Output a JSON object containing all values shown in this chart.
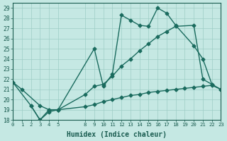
{
  "lines": [
    {
      "x": [
        0,
        1,
        3,
        4,
        5,
        9,
        10,
        11,
        12,
        13,
        14,
        15,
        16,
        17,
        18,
        20,
        21,
        22
      ],
      "y": [
        21.7,
        21.0,
        19.4,
        19.0,
        19.0,
        25.0,
        21.3,
        22.5,
        28.3,
        27.8,
        27.3,
        27.2,
        29.0,
        28.5,
        27.3,
        25.3,
        24.0,
        21.5
      ],
      "color": "#1a6b5e",
      "marker": "D",
      "markersize": 2.5,
      "linewidth": 1.0
    },
    {
      "x": [
        0,
        2,
        3,
        4,
        5,
        8,
        9,
        10,
        11,
        12,
        13,
        14,
        15,
        16,
        17,
        18,
        20,
        21,
        22,
        23
      ],
      "y": [
        21.7,
        19.4,
        18.0,
        19.0,
        19.0,
        20.5,
        21.3,
        21.5,
        22.3,
        23.3,
        24.0,
        24.8,
        25.5,
        26.2,
        26.7,
        27.2,
        27.3,
        22.0,
        21.5,
        21.0
      ],
      "color": "#1a6b5e",
      "marker": "D",
      "markersize": 2.5,
      "linewidth": 1.0
    },
    {
      "x": [
        2,
        3,
        4,
        5,
        8,
        9,
        10,
        11,
        12,
        13,
        14,
        15,
        16,
        17,
        18,
        19,
        20,
        21,
        22,
        23
      ],
      "y": [
        19.4,
        18.0,
        18.8,
        19.0,
        19.3,
        19.5,
        19.8,
        20.0,
        20.2,
        20.4,
        20.5,
        20.7,
        20.8,
        20.9,
        21.0,
        21.1,
        21.2,
        21.3,
        21.4,
        21.0
      ],
      "color": "#1a6b5e",
      "marker": "D",
      "markersize": 2.5,
      "linewidth": 1.0
    }
  ],
  "xlim": [
    0,
    23
  ],
  "ylim": [
    18,
    29.5
  ],
  "xticks": [
    0,
    1,
    2,
    3,
    4,
    5,
    8,
    9,
    10,
    11,
    12,
    13,
    14,
    15,
    16,
    17,
    18,
    19,
    20,
    21,
    22,
    23
  ],
  "yticks": [
    18,
    19,
    20,
    21,
    22,
    23,
    24,
    25,
    26,
    27,
    28,
    29
  ],
  "xlabel": "Humidex (Indice chaleur)",
  "bg_color": "#c5e8e3",
  "grid_color": "#9dcdc5",
  "text_color": "#1a5c50",
  "tick_color": "#1a5c50"
}
